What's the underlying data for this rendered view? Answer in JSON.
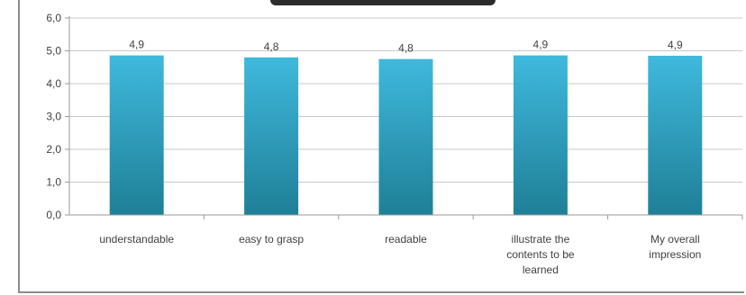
{
  "chart_data": {
    "type": "bar",
    "title": "",
    "xlabel": "",
    "ylabel": "",
    "ylim": [
      0,
      6
    ],
    "yticks": [
      "0,0",
      "1,0",
      "2,0",
      "3,0",
      "4,0",
      "5,0",
      "6,0"
    ],
    "categories": [
      "understandable",
      "easy to grasp",
      "readable",
      "illustrate the contents to be learned",
      "My overall impression"
    ],
    "category_lines": [
      [
        "understandable"
      ],
      [
        "easy to grasp"
      ],
      [
        "readable"
      ],
      [
        "illustrate the",
        "contents to be",
        "learned"
      ],
      [
        "My overall",
        "impression"
      ]
    ],
    "values": [
      4.86,
      4.8,
      4.75,
      4.86,
      4.85
    ],
    "data_labels": [
      "4,9",
      "4,8",
      "4,8",
      "4,9",
      "4,9"
    ],
    "grid": true,
    "legend": "none",
    "colors": {
      "bar_top": "#3fb9dd",
      "bar_bottom": "#1f7f97",
      "grid": "#c9c9c9",
      "axis": "#9a9a9a"
    }
  }
}
